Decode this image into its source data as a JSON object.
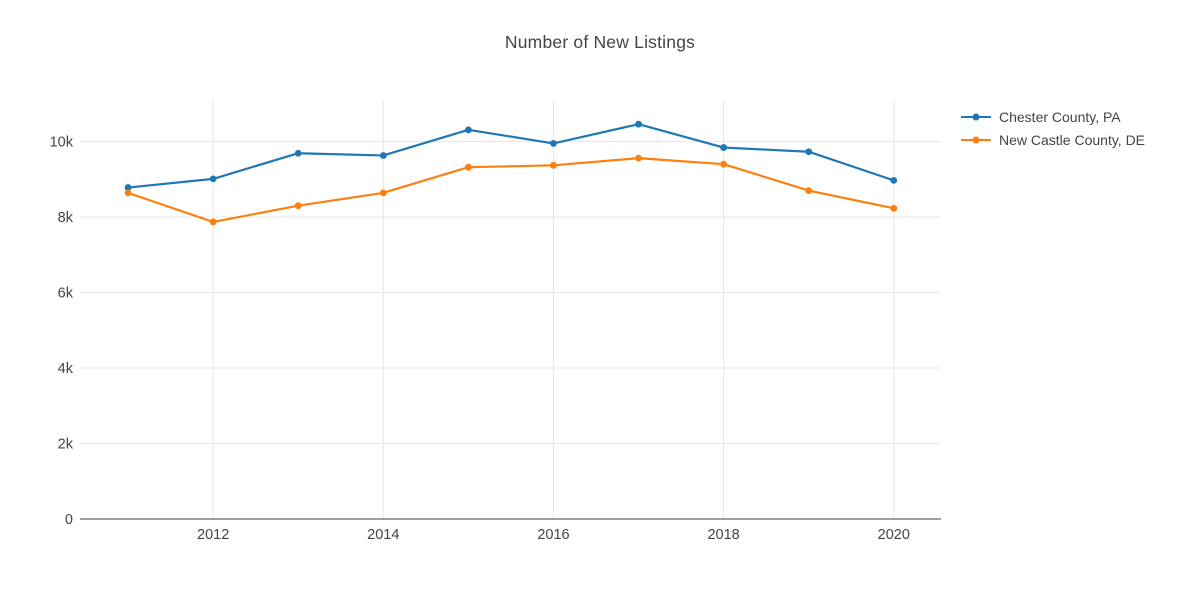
{
  "chart_data": {
    "type": "line",
    "title": "Number of New Listings",
    "x": [
      2011,
      2012,
      2013,
      2014,
      2015,
      2016,
      2017,
      2018,
      2019,
      2020
    ],
    "series": [
      {
        "name": "Chester County, PA",
        "color": "#1f77b4",
        "values": [
          8780,
          9010,
          9690,
          9630,
          10310,
          9950,
          10460,
          9840,
          9730,
          8970
        ]
      },
      {
        "name": "New Castle County, DE",
        "color": "#ff7f0e",
        "values": [
          8640,
          7870,
          8300,
          8640,
          9320,
          9370,
          9560,
          9400,
          8700,
          8230
        ]
      }
    ],
    "xlim": [
      2010.435,
      2020.555
    ],
    "ylim": [
      0,
      11100
    ],
    "xticks": {
      "values": [
        2012,
        2014,
        2016,
        2018,
        2020
      ],
      "labels": [
        "2012",
        "2014",
        "2016",
        "2018",
        "2020"
      ]
    },
    "yticks": {
      "values": [
        0,
        2000,
        4000,
        6000,
        8000,
        10000
      ],
      "labels": [
        "0",
        "2k",
        "4k",
        "6k",
        "8k",
        "10k"
      ]
    },
    "grid": true,
    "legend_position": "right",
    "colors": {
      "grid": "#e8e8e8",
      "axis_line": "#9f9f9f",
      "text": "#444444",
      "background": "#ffffff"
    }
  }
}
